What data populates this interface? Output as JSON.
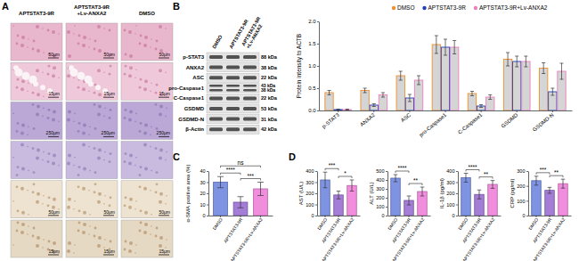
{
  "panel_labels": [
    "A",
    "B",
    "C",
    "D"
  ],
  "histology": {
    "columns": [
      [
        "APTSTAT3-9R"
      ],
      [
        "APTSTAT3-9R",
        "+Lv-ANXA2"
      ],
      [
        "DMSO"
      ]
    ],
    "scale_bars": [
      [
        "50μm",
        "50μm",
        "50μm"
      ],
      [
        "15μm",
        "15μm",
        "15μm"
      ],
      [
        "250μm",
        "250μm",
        "250μm"
      ],
      [
        null,
        null,
        null
      ],
      [
        "50μm",
        "50μm",
        "50μm"
      ],
      [
        "15μm",
        "15μm",
        "15μm"
      ]
    ]
  },
  "blot": {
    "lanes": [
      [
        "DMSO"
      ],
      [
        "APTSTAT3-9R"
      ],
      [
        "APTSTAT3-9R",
        "+Lv-ANXA2"
      ]
    ],
    "rows": [
      {
        "protein": "p-STAT3",
        "kda": [
          "88 kDa"
        ]
      },
      {
        "protein": "ANXA2",
        "kda": [
          "38 kDa"
        ]
      },
      {
        "protein": "ASC",
        "kda": [
          "22 kDa"
        ]
      },
      {
        "protein": "pro-Caspase1",
        "kda": [
          "43 kDa",
          "38 kDa"
        ]
      },
      {
        "protein": "C-Caspase1",
        "kda": [
          "22 kDa"
        ]
      },
      {
        "protein": "GSDMD",
        "kda": [
          "53 kDa"
        ]
      },
      {
        "protein": "GSDMD-N",
        "kda": [
          "31 kDa"
        ]
      },
      {
        "protein": "β-Actin",
        "kda": [
          "42 kDa"
        ]
      }
    ]
  },
  "chart_data": [
    {
      "type": "bar",
      "y_label": "Protein intensity to ACTB",
      "categories": [
        "p-STAT3",
        "ANXA2",
        "ASC",
        "pro-Caspase1",
        "C-Caspase1",
        "GSDMD",
        "GSDMD-N"
      ],
      "series": [
        {
          "name": "DMSO",
          "color": "#f28e2b",
          "values": [
            0.4,
            0.45,
            0.78,
            1.48,
            0.38,
            1.15,
            0.95
          ],
          "errors": [
            0.05,
            0.05,
            0.1,
            0.2,
            0.05,
            0.15,
            0.12
          ]
        },
        {
          "name": "APTSTAT3-9R",
          "color": "#1f3fbf",
          "values": [
            0.02,
            0.12,
            0.28,
            1.42,
            0.1,
            1.1,
            0.42
          ],
          "errors": [
            0.01,
            0.03,
            0.08,
            0.18,
            0.03,
            0.12,
            0.08
          ]
        },
        {
          "name": "APTSTAT3-9R+Lv-ANXA2",
          "color": "#ee7fbf",
          "values": [
            0.02,
            0.35,
            0.68,
            1.42,
            0.3,
            1.1,
            0.88
          ],
          "errors": [
            0.01,
            0.05,
            0.1,
            0.15,
            0.05,
            0.12,
            0.18
          ]
        }
      ],
      "ylim": [
        0,
        2
      ],
      "yticks": [
        {
          "value": 0,
          "label": "0.0"
        },
        {
          "value": 0.5,
          "label": "0.5"
        },
        {
          "value": 1,
          "label": "1.0"
        },
        {
          "value": 1.5,
          "label": "1.5"
        },
        {
          "value": 2,
          "label": "2.0"
        }
      ],
      "legend": "top"
    },
    {
      "type": "bar",
      "y_label": "α-SMA positive area (%)",
      "categories": [
        "DMSO",
        "APTSTAT3-9R",
        "APTSTAT3-9R+Lv-ANXA2"
      ],
      "values": [
        30,
        12,
        24
      ],
      "errors": [
        5,
        5,
        6
      ],
      "colors": [
        "#7088e0",
        "#9a6fd1",
        "#ee82d9"
      ],
      "ylim": [
        0,
        40
      ],
      "yticks": [
        0,
        10,
        20,
        30,
        40
      ],
      "annotations": [
        {
          "text": "****",
          "between": [
            "DMSO",
            "APTSTAT3-9R"
          ]
        },
        {
          "text": "***",
          "between": [
            "APTSTAT3-9R",
            "APTSTAT3-9R+Lv-ANXA2"
          ]
        },
        {
          "text": "ns",
          "between": [
            "DMSO",
            "APTSTAT3-9R+Lv-ANXA2"
          ]
        }
      ]
    },
    {
      "type": "bar",
      "y_label": "AST (U/L)",
      "categories": [
        "DMSO",
        "APTSTAT3-9R",
        "APTSTAT3-9R+Lv-ANXA2"
      ],
      "values": [
        320,
        185,
        270
      ],
      "errors": [
        70,
        35,
        50
      ],
      "colors": [
        "#7088e0",
        "#9a6fd1",
        "#ee82d9"
      ],
      "ylim": [
        0,
        400
      ],
      "yticks": [
        0,
        100,
        200,
        300,
        400
      ],
      "annotations": [
        {
          "text": "***",
          "between": [
            "DMSO",
            "APTSTAT3-9R"
          ]
        },
        {
          "text": "*",
          "between": [
            "APTSTAT3-9R",
            "APTSTAT3-9R+Lv-ANXA2"
          ]
        }
      ]
    },
    {
      "type": "bar",
      "y_label": "ALT (U/L)",
      "categories": [
        "DMSO",
        "APTSTAT3-9R",
        "APTSTAT3-9R+Lv-ANXA2"
      ],
      "values": [
        420,
        170,
        270
      ],
      "errors": [
        40,
        50,
        50
      ],
      "colors": [
        "#7088e0",
        "#9a6fd1",
        "#ee82d9"
      ],
      "ylim": [
        0,
        500
      ],
      "yticks": [
        0,
        100,
        200,
        300,
        400,
        500
      ],
      "annotations": [
        {
          "text": "****",
          "between": [
            "DMSO",
            "APTSTAT3-9R"
          ]
        },
        {
          "text": "**",
          "between": [
            "APTSTAT3-9R",
            "APTSTAT3-9R+Lv-ANXA2"
          ]
        }
      ]
    },
    {
      "type": "bar",
      "y_label": "IL-1β (pg/ml)",
      "categories": [
        "DMSO",
        "APTSTAT3-9R",
        "APTSTAT3-9R+Lv-ANXA2"
      ],
      "values": [
        340,
        190,
        280
      ],
      "errors": [
        40,
        40,
        35
      ],
      "colors": [
        "#7088e0",
        "#9a6fd1",
        "#ee82d9"
      ],
      "ylim": [
        0,
        400
      ],
      "yticks": [
        0,
        100,
        200,
        300,
        400
      ],
      "annotations": [
        {
          "text": "****",
          "between": [
            "DMSO",
            "APTSTAT3-9R"
          ]
        },
        {
          "text": "**",
          "between": [
            "APTSTAT3-9R",
            "APTSTAT3-9R+Lv-ANXA2"
          ]
        }
      ]
    },
    {
      "type": "bar",
      "y_label": "CRP (pg/ml)",
      "categories": [
        "DMSO",
        "APTSTAT3-9R",
        "APTSTAT3-9R+Lv-ANXA2"
      ],
      "values": [
        235,
        170,
        215
      ],
      "errors": [
        30,
        20,
        30
      ],
      "colors": [
        "#7088e0",
        "#9a6fd1",
        "#ee82d9"
      ],
      "ylim": [
        0,
        300
      ],
      "yticks": [
        0,
        100,
        200,
        300
      ],
      "annotations": [
        {
          "text": "***",
          "between": [
            "DMSO",
            "APTSTAT3-9R"
          ]
        },
        {
          "text": "**",
          "between": [
            "APTSTAT3-9R",
            "APTSTAT3-9R+Lv-ANXA2"
          ]
        }
      ]
    }
  ]
}
